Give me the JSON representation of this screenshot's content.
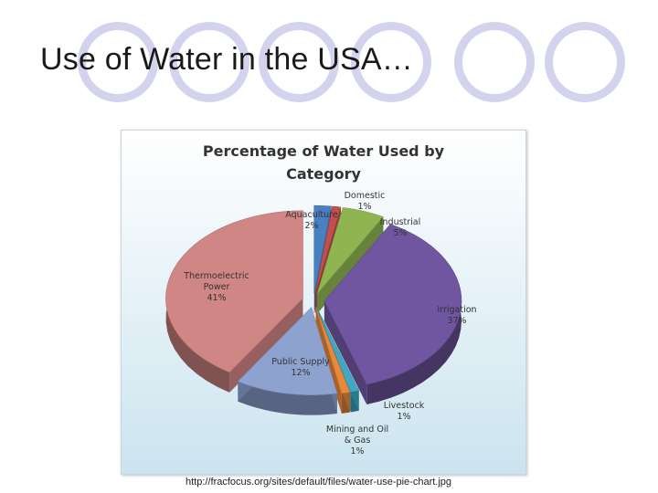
{
  "slide": {
    "title": "Use of Water in the USA…",
    "source_url": "http://fracfocus.org/sites/default/files/water-use-pie-chart.jpg"
  },
  "colors": {
    "decor_circle_fill": "#d3d3ee",
    "chart_bg_top": "#ffffff",
    "chart_bg_bottom": "#cbe4ef"
  },
  "chart_data": {
    "type": "pie",
    "title": [
      "Percentage of Water Used by",
      "Category"
    ],
    "slices": [
      {
        "name": "Aquaculture",
        "value": 2,
        "label": "2%",
        "color": "#4a7fc1"
      },
      {
        "name": "Domestic",
        "value": 1,
        "label": "1%",
        "color": "#c0504d"
      },
      {
        "name": "Industrial",
        "value": 5,
        "label": "5%",
        "color": "#8fb552"
      },
      {
        "name": "Irrigation",
        "value": 37,
        "label": "37%",
        "color": "#7056a0"
      },
      {
        "name": "Livestock",
        "value": 1,
        "label": "1%",
        "color": "#3fa8c4"
      },
      {
        "name": "Mining and Oil & Gas",
        "value": 1,
        "label": "1%",
        "color": "#e7883a"
      },
      {
        "name": "Public Supply",
        "value": 12,
        "label": "12%",
        "color": "#8ea2d0"
      },
      {
        "name": "Thermoelectric Power",
        "value": 41,
        "label": "41%",
        "color": "#cf8684"
      }
    ]
  }
}
